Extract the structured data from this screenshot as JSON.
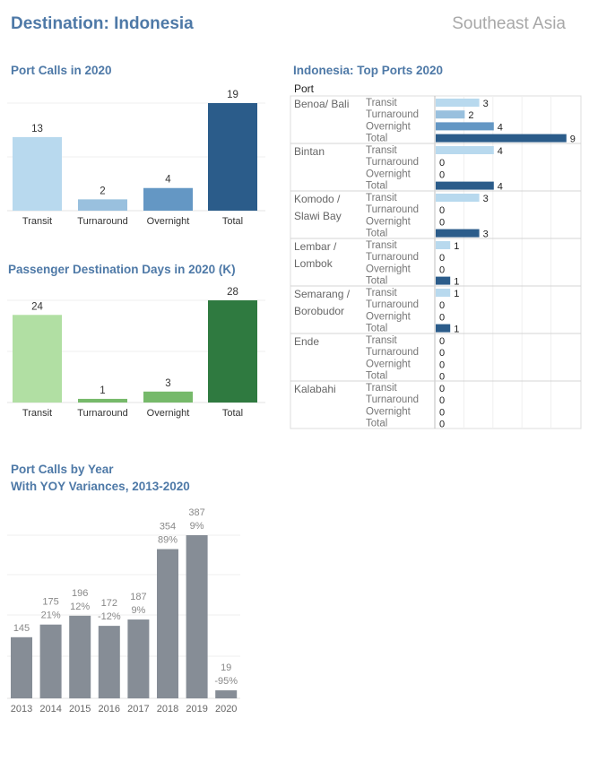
{
  "header": {
    "title_prefix": "Destination: ",
    "title_country": "Indonesia",
    "region": "Southeast Asia"
  },
  "colors": {
    "title_blue": "#4e79a7",
    "blue_light": "#b8d9ee",
    "blue_mid1": "#99c0de",
    "blue_mid2": "#6497c4",
    "blue_dark": "#2b5c8a",
    "green_light": "#b1dfa3",
    "green_mid": "#76b96a",
    "green_dark": "#2f7a40",
    "gray_bar": "#868d96"
  },
  "chart_data": [
    {
      "id": "port_calls_2020",
      "type": "bar",
      "title": "Port Calls in 2020",
      "categories": [
        "Transit",
        "Turnaround",
        "Overnight",
        "Total"
      ],
      "values": [
        13,
        2,
        4,
        19
      ]
    },
    {
      "id": "passenger_days_2020",
      "type": "bar",
      "title": "Passenger Destination Days in 2020 (K)",
      "categories": [
        "Transit",
        "Turnaround",
        "Overnight",
        "Total"
      ],
      "values": [
        24,
        1,
        3,
        28
      ]
    },
    {
      "id": "port_calls_by_year",
      "type": "bar",
      "title": "Port Calls by Year",
      "subtitle": "With YOY Variances, 2013-2020",
      "categories": [
        "2013",
        "2014",
        "2015",
        "2016",
        "2017",
        "2018",
        "2019",
        "2020"
      ],
      "values": [
        145,
        175,
        196,
        172,
        187,
        354,
        387,
        19
      ],
      "variances": [
        "",
        "21%",
        "12%",
        "-12%",
        "9%",
        "89%",
        "9%",
        "-95%"
      ]
    },
    {
      "id": "top_ports_2020",
      "type": "bar",
      "orientation": "horizontal",
      "title": "Indonesia: Top Ports 2020",
      "row_header": "Port",
      "measures": [
        "Transit",
        "Turnaround",
        "Overnight",
        "Total"
      ],
      "ports": [
        {
          "name": [
            "Benoa/ Bali"
          ],
          "values": [
            3,
            2,
            4,
            9
          ]
        },
        {
          "name": [
            "Bintan"
          ],
          "values": [
            4,
            0,
            0,
            4
          ]
        },
        {
          "name": [
            "Komodo /",
            "Slawi Bay"
          ],
          "values": [
            3,
            0,
            0,
            3
          ]
        },
        {
          "name": [
            "Lembar /",
            "Lombok"
          ],
          "values": [
            1,
            0,
            0,
            1
          ]
        },
        {
          "name": [
            "Semarang /",
            "Borobudor"
          ],
          "values": [
            1,
            0,
            0,
            1
          ]
        },
        {
          "name": [
            "Ende"
          ],
          "values": [
            0,
            0,
            0,
            0
          ]
        },
        {
          "name": [
            "Kalabahi"
          ],
          "values": [
            0,
            0,
            0,
            0
          ]
        }
      ]
    }
  ]
}
